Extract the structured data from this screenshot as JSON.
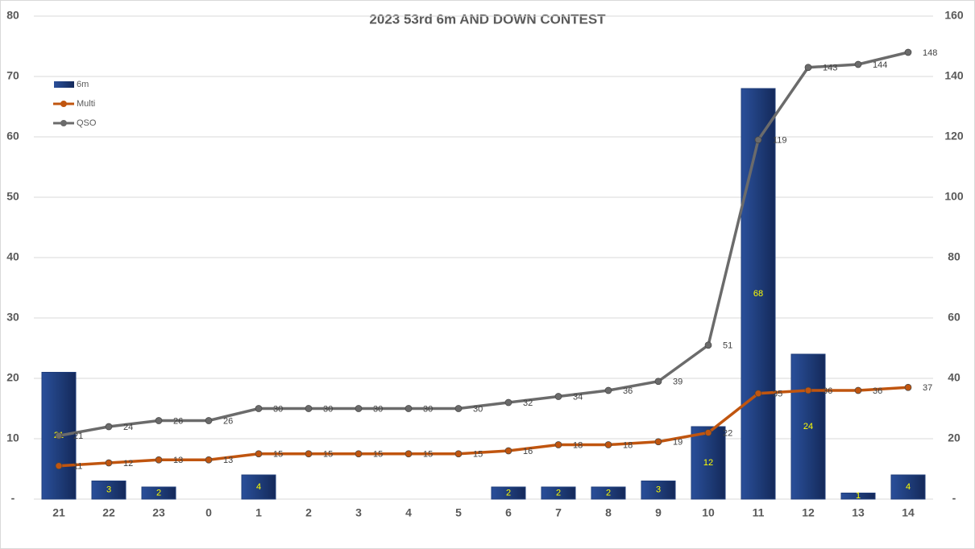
{
  "chart_data": {
    "type": "bar-line",
    "title": "2023 53rd 6m AND DOWN CONTEST",
    "categories": [
      "21",
      "22",
      "23",
      "0",
      "1",
      "2",
      "3",
      "4",
      "5",
      "6",
      "7",
      "8",
      "9",
      "10",
      "11",
      "12",
      "13",
      "14"
    ],
    "series": [
      {
        "name": "6m",
        "type": "bar",
        "color": "#1f3d7a",
        "values": [
          21,
          3,
          2,
          null,
          4,
          null,
          null,
          null,
          null,
          2,
          2,
          2,
          3,
          12,
          68,
          24,
          1,
          4
        ]
      },
      {
        "name": "Multi",
        "type": "line",
        "axis": "y2",
        "color": "#c0550f",
        "values": [
          11,
          12,
          13,
          13,
          15,
          15,
          15,
          15,
          15,
          16,
          18,
          18,
          19,
          22,
          35,
          36,
          36,
          37
        ]
      },
      {
        "name": "QSO",
        "type": "line",
        "axis": "y2",
        "color": "#6b6b6b",
        "values": [
          21,
          24,
          26,
          26,
          30,
          30,
          30,
          30,
          30,
          32,
          34,
          36,
          39,
          51,
          119,
          143,
          144,
          148
        ]
      }
    ],
    "ylim": [
      0,
      80
    ],
    "yticks": [
      {
        "value": 0,
        "label": "-"
      },
      10,
      20,
      30,
      40,
      50,
      60,
      70,
      80
    ],
    "y2lim": [
      0,
      160
    ],
    "y2ticks": [
      {
        "value": 0,
        "label": "-"
      },
      20,
      40,
      60,
      80,
      100,
      120,
      140,
      160
    ],
    "grid": true,
    "legend": "top-left"
  }
}
